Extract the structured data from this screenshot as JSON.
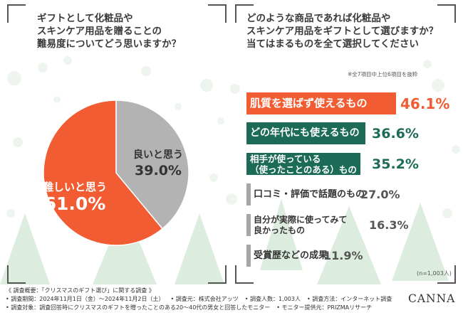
{
  "colors": {
    "accent": "#f15c33",
    "green": "#1b6b57",
    "gray": "#a6a6a6",
    "pie_gray": "#b3b3b3",
    "tree": "#dcecdf"
  },
  "left_panel": {
    "question": "ギフトとして化粧品や\nスキンケア用品を贈ることの\n難易度についてどう思いますか？"
  },
  "right_panel": {
    "question": "どのような商品であれば化粧品や\nスキンケア用品をギフトとして選びますか？\n当てはまるものを全て選択してください",
    "note": "※全7項目中上位6項目を抜粋",
    "n_note": "(n=1,003人)"
  },
  "chart_data": [
    {
      "type": "pie",
      "slices": [
        {
          "label": "難しいと思う",
          "value": 61.0,
          "value_label": "61.0%",
          "color": "#f15c33"
        },
        {
          "label": "良いと思う",
          "value": 39.0,
          "value_label": "39.0%",
          "color": "#b3b3b3"
        }
      ]
    },
    {
      "type": "bar",
      "orientation": "horizontal",
      "xlim": [
        0,
        100
      ],
      "categories": [
        "肌質を選ばず使えるもの",
        "どの年代にも使えるもの",
        "相手が使っている\n（使ったことのある）もの",
        "口コミ・評価で話題のもの",
        "自分が実際に使ってみて\n良かったもの",
        "受賞歴などの成果"
      ],
      "values": [
        46.1,
        36.6,
        35.2,
        27.0,
        16.3,
        11.9
      ],
      "value_labels": [
        "46.1%",
        "36.6%",
        "35.2%",
        "27.0%",
        "16.3%",
        "11.9%"
      ],
      "bar_colors": [
        "#f15c33",
        "#1b6b57",
        "#1b6b57",
        "#a6a6a6",
        "#a6a6a6",
        "#a6a6a6"
      ],
      "label_colors": [
        "#ffffff",
        "#ffffff",
        "#ffffff",
        "#333333",
        "#333333",
        "#333333"
      ],
      "value_colors": [
        "#f15c33",
        "#1b6b57",
        "#1b6b57",
        "#555555",
        "#555555",
        "#555555"
      ]
    }
  ],
  "footer": {
    "title": "《 調査概要：「クリスマスのギフト選び」に関する調査 》",
    "items_row1": [
      "• 調査期間：2024年11月1日（金）〜2024年11月2日（土）",
      "• 調査元：株式会社アッツ",
      "• 調査人数：1,003人",
      "• 調査方法：インターネット調査"
    ],
    "items_row2": [
      "• 調査対象：調査回答時にクリスマスのギフトを贈ったことのある20〜40代の男女と回答したモニター",
      "• モニター提供元：PRIZMAリサーチ"
    ],
    "brand": "CANNA"
  }
}
